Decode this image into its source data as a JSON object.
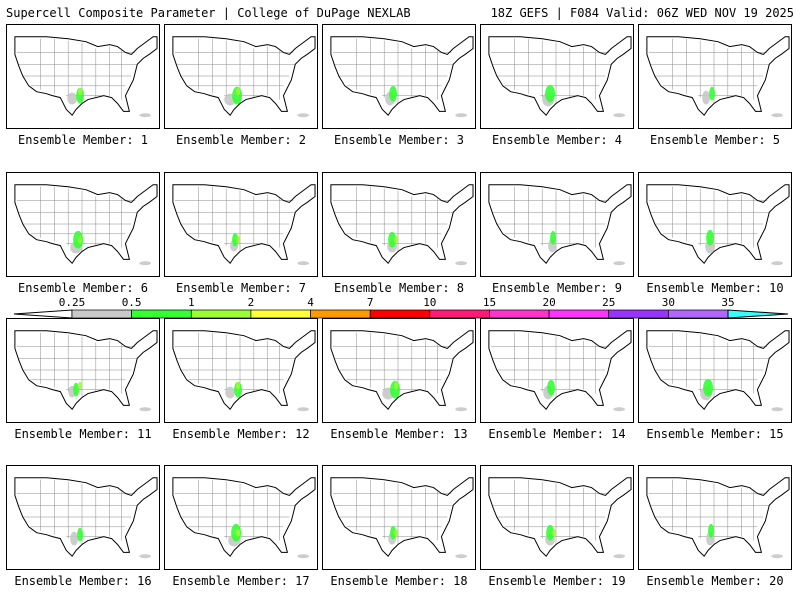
{
  "header": {
    "left": "Supercell Composite Parameter | College of DuPage NEXLAB",
    "right": "18Z GEFS | F084 Valid: 06Z WED NOV 19 2025"
  },
  "member_label_prefix": "Ensemble Member: ",
  "members": [
    1,
    2,
    3,
    4,
    5,
    6,
    7,
    8,
    9,
    10,
    11,
    12,
    13,
    14,
    15,
    16,
    17,
    18,
    19,
    20
  ],
  "colorbar": {
    "labels": [
      "0.25",
      "0.5",
      "1",
      "2",
      "4",
      "7",
      "10",
      "15",
      "20",
      "25",
      "30",
      "35"
    ],
    "colors": [
      "#c8c8c8",
      "#33ff33",
      "#99ff33",
      "#ffff33",
      "#ff9900",
      "#ff0000",
      "#ff1a75",
      "#ff33cc",
      "#ff33ff",
      "#9933ff",
      "#b366ff",
      "#33ffff"
    ]
  }
}
